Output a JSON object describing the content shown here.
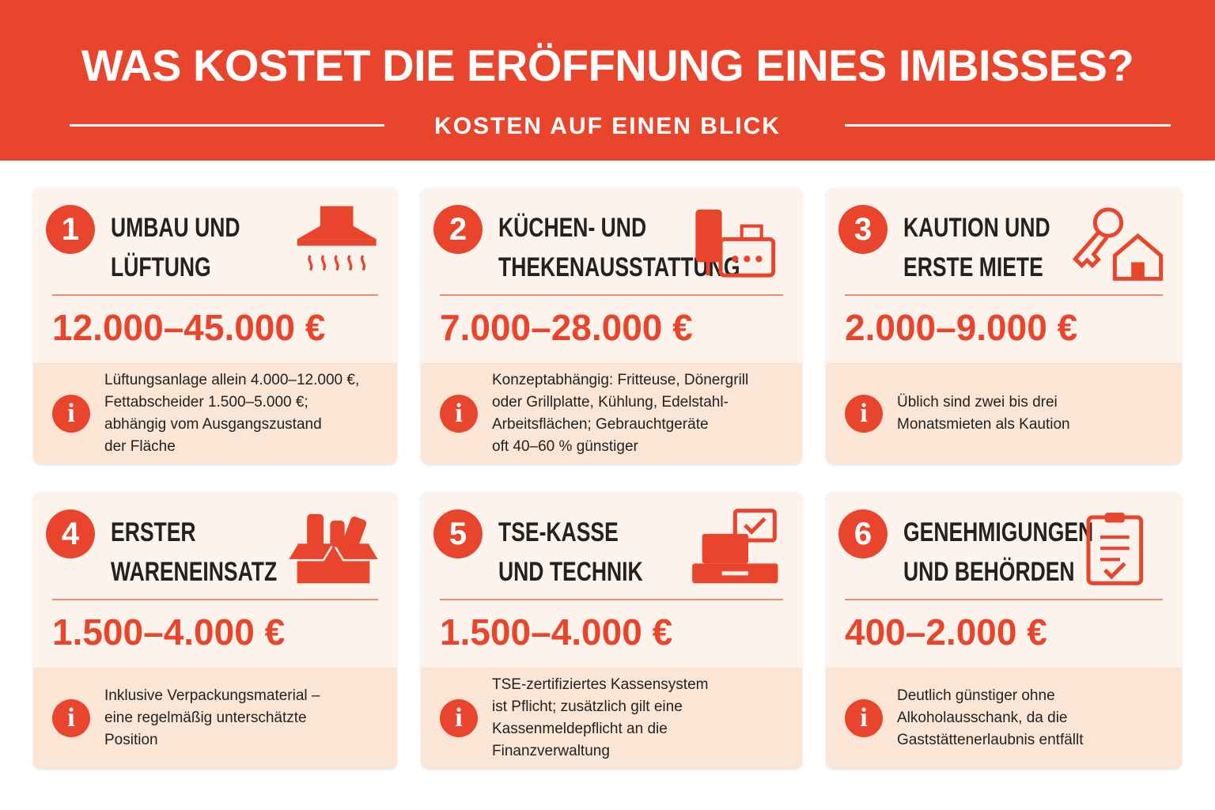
{
  "header": {
    "title": "WAS KOSTET DIE ERÖFFNUNG EINES IMBISSES?",
    "subtitle": "KOSTEN AUF EINEN BLICK"
  },
  "cards": [
    {
      "number": 1,
      "title_lines": [
        "UMBAU UND",
        "LÜFTUNG"
      ],
      "cost": "12.000–45.000 €",
      "info_lines": [
        "Lüftungsanlage allein 4.000–12.000 €,",
        "Fettabscheider 1.500–5.000 €;",
        "abhängig vom Ausgangszustand",
        "der Fläche"
      ]
    },
    {
      "number": 2,
      "title_lines": [
        "KÜCHEN- UND",
        "THEKENAUSSTATTUNG"
      ],
      "cost": "7.000–28.000 €",
      "info_lines": [
        "Konzeptabhängig: Fritteuse, Dönergrill",
        "oder Grillplatte, Kühlung, Edelstahl-",
        "Arbeitsflächen; Gebrauchtgeräte",
        "oft 40–60 % günstiger"
      ]
    },
    {
      "number": 3,
      "title_lines": [
        "KAUTION UND",
        "ERSTE MIETE"
      ],
      "cost": "2.000–9.000 €",
      "info_lines": [
        "Üblich sind zwei bis drei",
        "Monatsmieten als Kaution"
      ]
    },
    {
      "number": 4,
      "title_lines": [
        "ERSTER",
        "WARENEINSATZ"
      ],
      "cost": "1.500–4.000 €",
      "info_lines": [
        "Inklusive Verpackungsmaterial –",
        "eine regelmäßig unterschätzte",
        "Position"
      ]
    },
    {
      "number": 5,
      "title_lines": [
        "TSE-KASSE",
        "UND TECHNIK"
      ],
      "cost": "1.500–4.000 €",
      "info_lines": [
        "TSE-zertifiziertes Kassensystem",
        "ist Pflicht; zusätzlich gilt eine",
        "Kassenmeldepflicht an die",
        "Finanzverwaltung"
      ]
    },
    {
      "number": 6,
      "title_lines": [
        "GENEHMIGUNGEN",
        "UND BEHÖRDEN"
      ],
      "cost": "400–2.000 €",
      "info_lines": [
        "Deutlich günstiger ohne",
        "Alkoholausschank, da die",
        "Gaststättenerlaubnis entfällt"
      ]
    }
  ]
}
